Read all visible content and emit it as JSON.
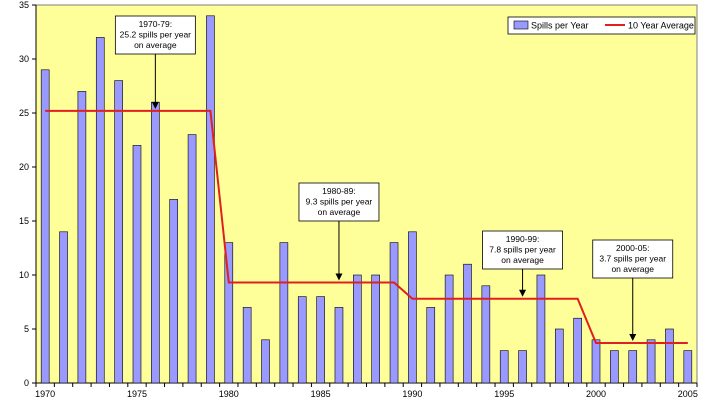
{
  "chart_data": {
    "type": "bar",
    "x": [
      1970,
      1971,
      1972,
      1973,
      1974,
      1975,
      1976,
      1977,
      1978,
      1979,
      1980,
      1981,
      1982,
      1983,
      1984,
      1985,
      1986,
      1987,
      1988,
      1989,
      1990,
      1991,
      1992,
      1993,
      1994,
      1995,
      1996,
      1997,
      1998,
      1999,
      2000,
      2001,
      2002,
      2003,
      2004,
      2005
    ],
    "series": [
      {
        "name": "Spills per Year",
        "type": "bar",
        "color": "#9999ff",
        "values": [
          29,
          14,
          27,
          32,
          28,
          22,
          26,
          17,
          23,
          34,
          13,
          7,
          4,
          13,
          8,
          8,
          7,
          10,
          10,
          13,
          14,
          7,
          10,
          11,
          9,
          3,
          3,
          10,
          5,
          6,
          4,
          3,
          3,
          4,
          5,
          3
        ]
      },
      {
        "name": "10 Year Average",
        "type": "step-line",
        "color": "#e02020",
        "segments": [
          {
            "from": 1970,
            "to": 1979,
            "value": 25.2
          },
          {
            "from": 1980,
            "to": 1989,
            "value": 9.3
          },
          {
            "from": 1990,
            "to": 1999,
            "value": 7.8
          },
          {
            "from": 2000,
            "to": 2005,
            "value": 3.7
          }
        ]
      }
    ],
    "ylim": [
      0,
      35
    ],
    "yticks": [
      "0",
      "5",
      "10",
      "15",
      "20",
      "25",
      "30",
      "35"
    ],
    "xticks": [
      "1970",
      "1975",
      "1980",
      "1985",
      "1990",
      "1995",
      "2000",
      "2005"
    ],
    "grid": false,
    "legend": "top-right",
    "background": "#ffff99",
    "annotations": [
      {
        "lines": [
          "1970-79:",
          "25.2 spills per year",
          "on average"
        ],
        "year": 1976,
        "value": 25.2
      },
      {
        "lines": [
          "1980-89:",
          "9.3 spills per year",
          "on average"
        ],
        "year": 1986,
        "value": 9.3
      },
      {
        "lines": [
          "1990-99:",
          "7.8 spills per year",
          "on average"
        ],
        "year": 1996,
        "value": 7.8
      },
      {
        "lines": [
          "2000-05:",
          "3.7 spills per year",
          "on average"
        ],
        "year": 2002,
        "value": 3.7
      }
    ]
  }
}
